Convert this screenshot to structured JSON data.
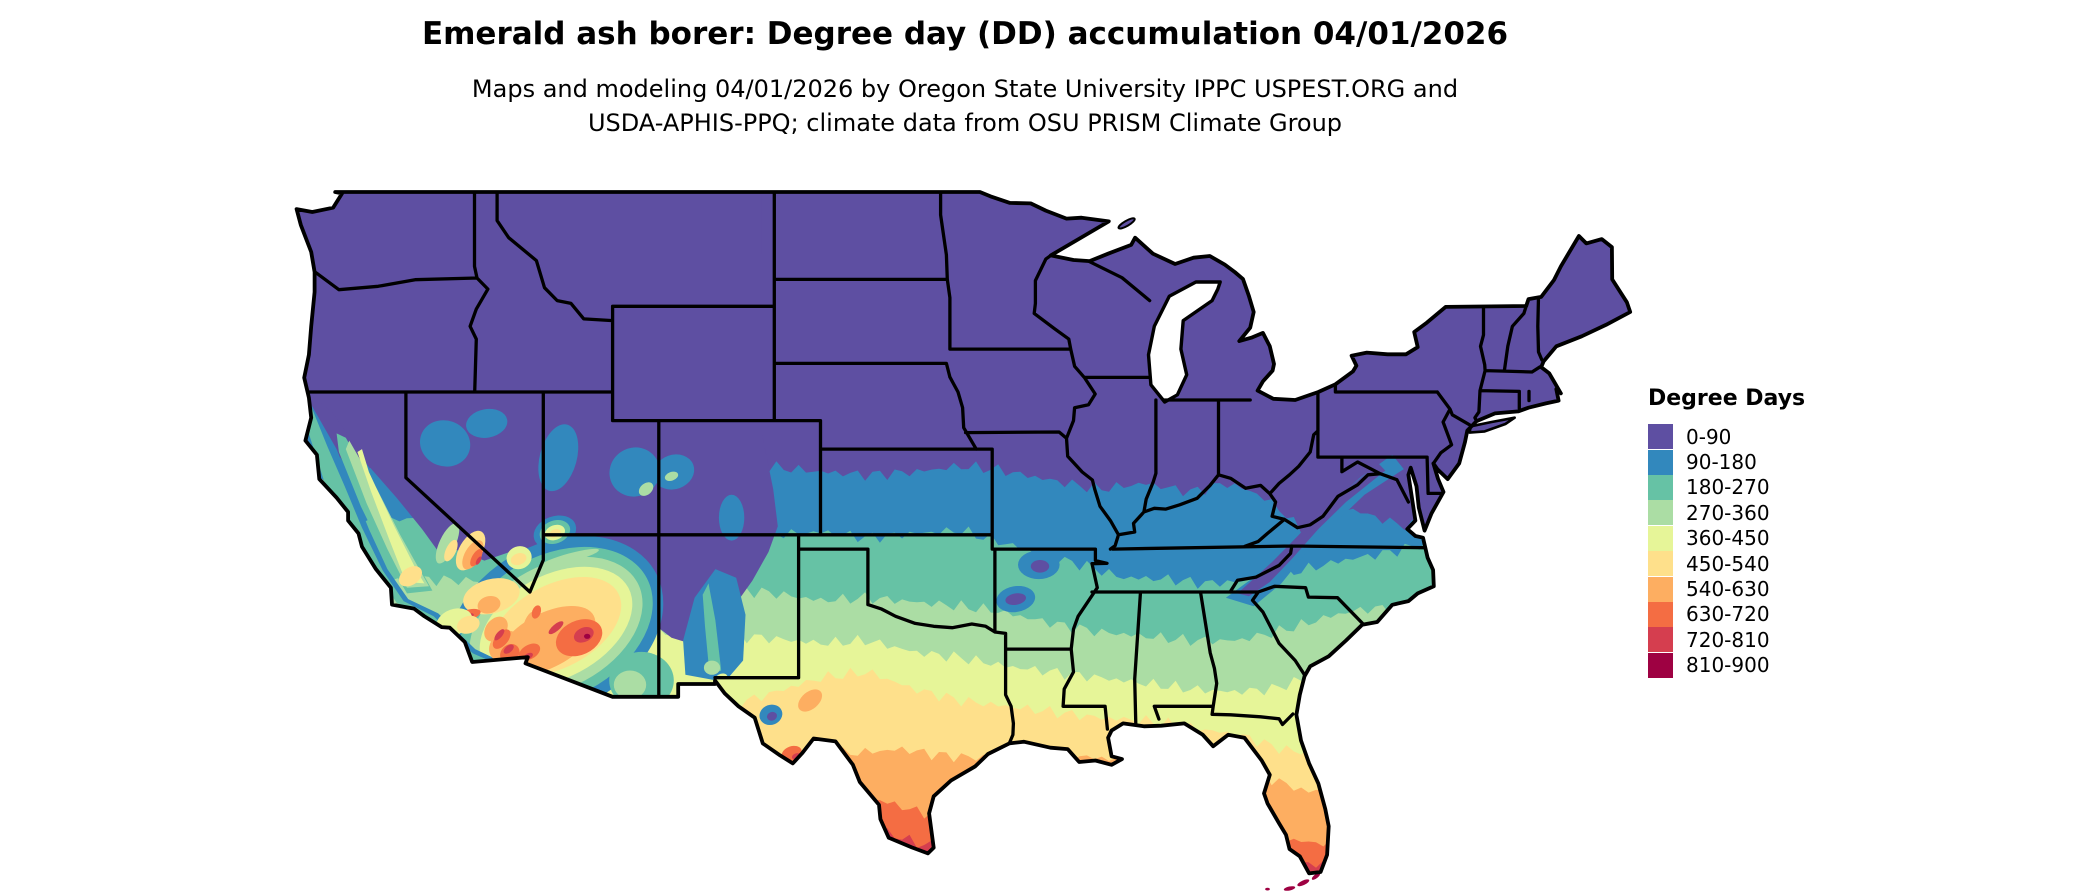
{
  "title": "Emerald ash borer: Degree day (DD) accumulation 04/01/2026",
  "subtitle_line1": "Maps and modeling 04/01/2026 by Oregon State University IPPC USPEST.ORG and",
  "subtitle_line2": "USDA-APHIS-PPQ; climate data from OSU PRISM Climate Group",
  "legend": {
    "title": "Degree Days",
    "entries": [
      {
        "label": "0-90",
        "color": "#5e4fa2"
      },
      {
        "label": "90-180",
        "color": "#3288bd"
      },
      {
        "label": "180-270",
        "color": "#66c2a5"
      },
      {
        "label": "270-360",
        "color": "#abdda4"
      },
      {
        "label": "360-450",
        "color": "#e6f598"
      },
      {
        "label": "450-540",
        "color": "#fee08b"
      },
      {
        "label": "540-630",
        "color": "#fdae61"
      },
      {
        "label": "630-720",
        "color": "#f46d43"
      },
      {
        "label": "720-810",
        "color": "#d53e4f"
      },
      {
        "label": "810-900",
        "color": "#9e0142"
      }
    ]
  },
  "map": {
    "border_color": "#000000",
    "background_color": "#ffffff"
  }
}
